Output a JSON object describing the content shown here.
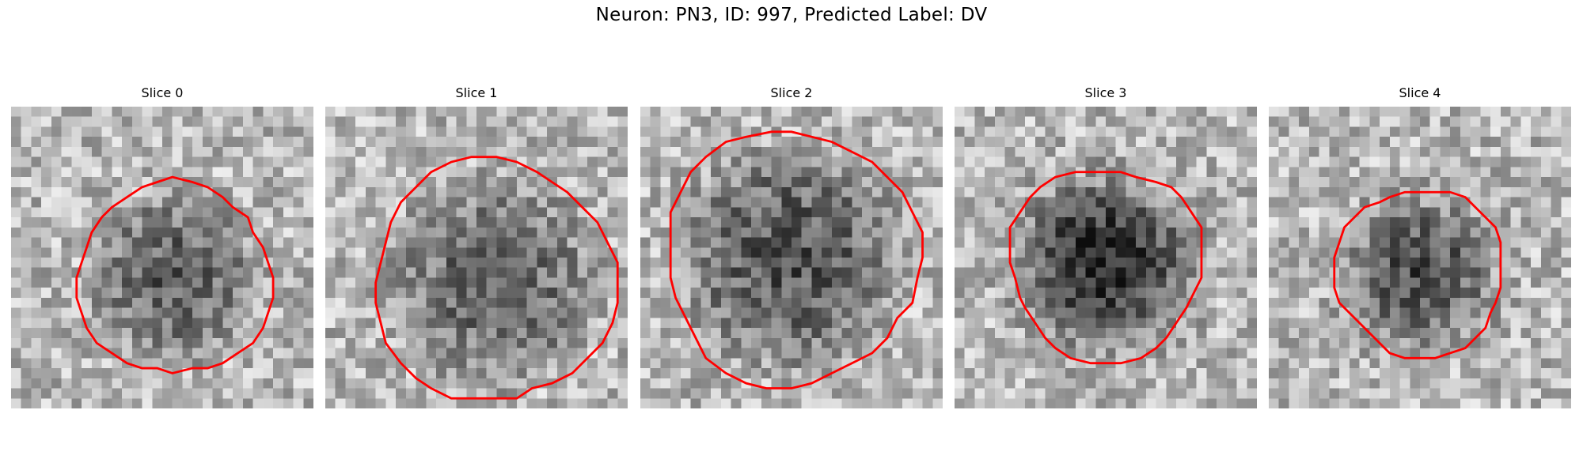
{
  "figure": {
    "suptitle": "Neuron: PN3, ID: 997, Predicted Label: DV",
    "contour_color": "#ff0000",
    "colormap": "gray"
  },
  "panels": [
    {
      "title": "Slice 0",
      "cell_center": [
        0.54,
        0.57
      ],
      "cell_radius": 0.32,
      "darkness": 0.55,
      "ring": 0.0
    },
    {
      "title": "Slice 1",
      "cell_center": [
        0.56,
        0.58
      ],
      "cell_radius": 0.4,
      "darkness": 0.5,
      "ring": 0.0
    },
    {
      "title": "Slice 2",
      "cell_center": [
        0.5,
        0.5
      ],
      "cell_radius": 0.42,
      "darkness": 0.6,
      "ring": 0.0
    },
    {
      "title": "Slice 3",
      "cell_center": [
        0.5,
        0.52
      ],
      "cell_radius": 0.32,
      "darkness": 0.9,
      "ring": 0.35
    },
    {
      "title": "Slice 4",
      "cell_center": [
        0.5,
        0.55
      ],
      "cell_radius": 0.28,
      "darkness": 0.65,
      "ring": 0.25
    }
  ]
}
